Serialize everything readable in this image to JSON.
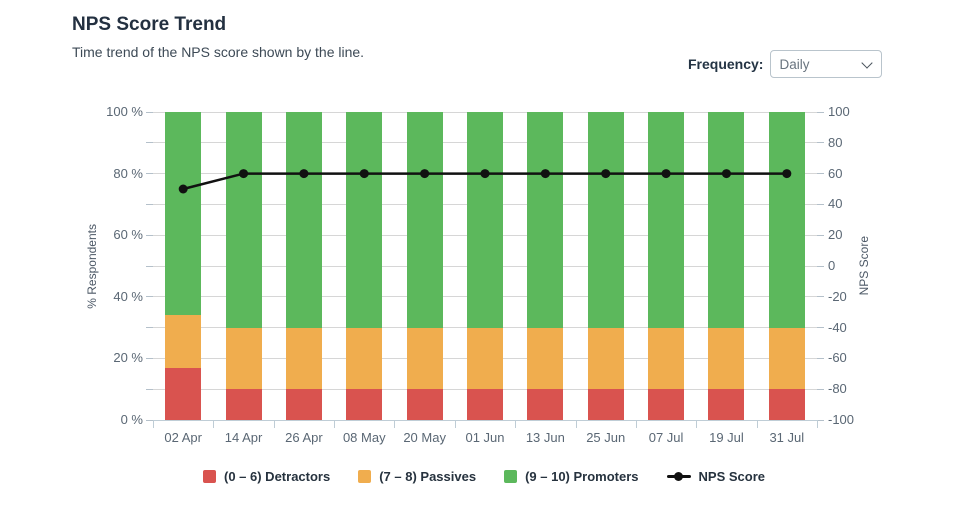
{
  "header": {
    "title": "NPS Score Trend",
    "subtitle": "Time trend of the NPS score shown by the line.",
    "frequency": {
      "label": "Frequency:",
      "value": "Daily",
      "options": [
        "Daily"
      ]
    }
  },
  "chart_data": {
    "type": "bar",
    "variant": "stacked-percentage-columns-with-line-overlay",
    "title": "NPS Score Trend",
    "categories": [
      "02 Apr",
      "14 Apr",
      "26 Apr",
      "08 May",
      "20 May",
      "01 Jun",
      "13 Jun",
      "25 Jun",
      "07 Jul",
      "19 Jul",
      "31 Jul"
    ],
    "series": [
      {
        "key": "detractors",
        "name": "(0 – 6) Detractors",
        "type": "bar",
        "stack": "respondents",
        "axis": "left",
        "color": "#d9534f",
        "values": [
          17,
          10,
          10,
          10,
          10,
          10,
          10,
          10,
          10,
          10,
          10
        ]
      },
      {
        "key": "passives",
        "name": "(7 – 8) Passives",
        "type": "bar",
        "stack": "respondents",
        "axis": "left",
        "color": "#f0ad4e",
        "values": [
          17,
          20,
          20,
          20,
          20,
          20,
          20,
          20,
          20,
          20,
          20
        ]
      },
      {
        "key": "promoters",
        "name": "(9 – 10) Promoters",
        "type": "bar",
        "stack": "respondents",
        "axis": "left",
        "color": "#5cb85c",
        "values": [
          66,
          70,
          70,
          70,
          70,
          70,
          70,
          70,
          70,
          70,
          70
        ]
      },
      {
        "key": "nps-score",
        "name": "NPS Score",
        "type": "line",
        "axis": "right",
        "color": "#111111",
        "values": [
          50,
          60,
          60,
          60,
          60,
          60,
          60,
          60,
          60,
          60,
          60
        ]
      }
    ],
    "axes": {
      "left": {
        "label": "% Respondents",
        "min": 0,
        "max": 100,
        "tick_step": 10,
        "label_step": 20,
        "format": "{v} %"
      },
      "right": {
        "label": "NPS Score",
        "min": -100,
        "max": 100,
        "tick_step": 20,
        "label_step": 20,
        "format": "{v}"
      }
    },
    "grid": {
      "horizontal": true
    },
    "legend_position": "bottom"
  },
  "legend": {
    "items": [
      {
        "key": "detractors",
        "label": "(0 – 6) Detractors",
        "color": "#d9534f",
        "marker": "square"
      },
      {
        "key": "passives",
        "label": "(7 – 8) Passives",
        "color": "#f0ad4e",
        "marker": "square"
      },
      {
        "key": "promoters",
        "label": "(9 – 10) Promoters",
        "color": "#5cb85c",
        "marker": "square"
      },
      {
        "key": "nps-score",
        "label": "NPS Score",
        "color": "#111111",
        "marker": "line-dot"
      }
    ]
  },
  "colors": {
    "detractors": "#d9534f",
    "passives": "#f0ad4e",
    "promoters": "#5cb85c",
    "nps_line": "#111111",
    "grid_line": "#d6d6d6",
    "axis_line": "#bfcdd6",
    "tick_mark": "#b4c0ca",
    "tick_text": "#5a6774",
    "title_text": "#233040"
  }
}
